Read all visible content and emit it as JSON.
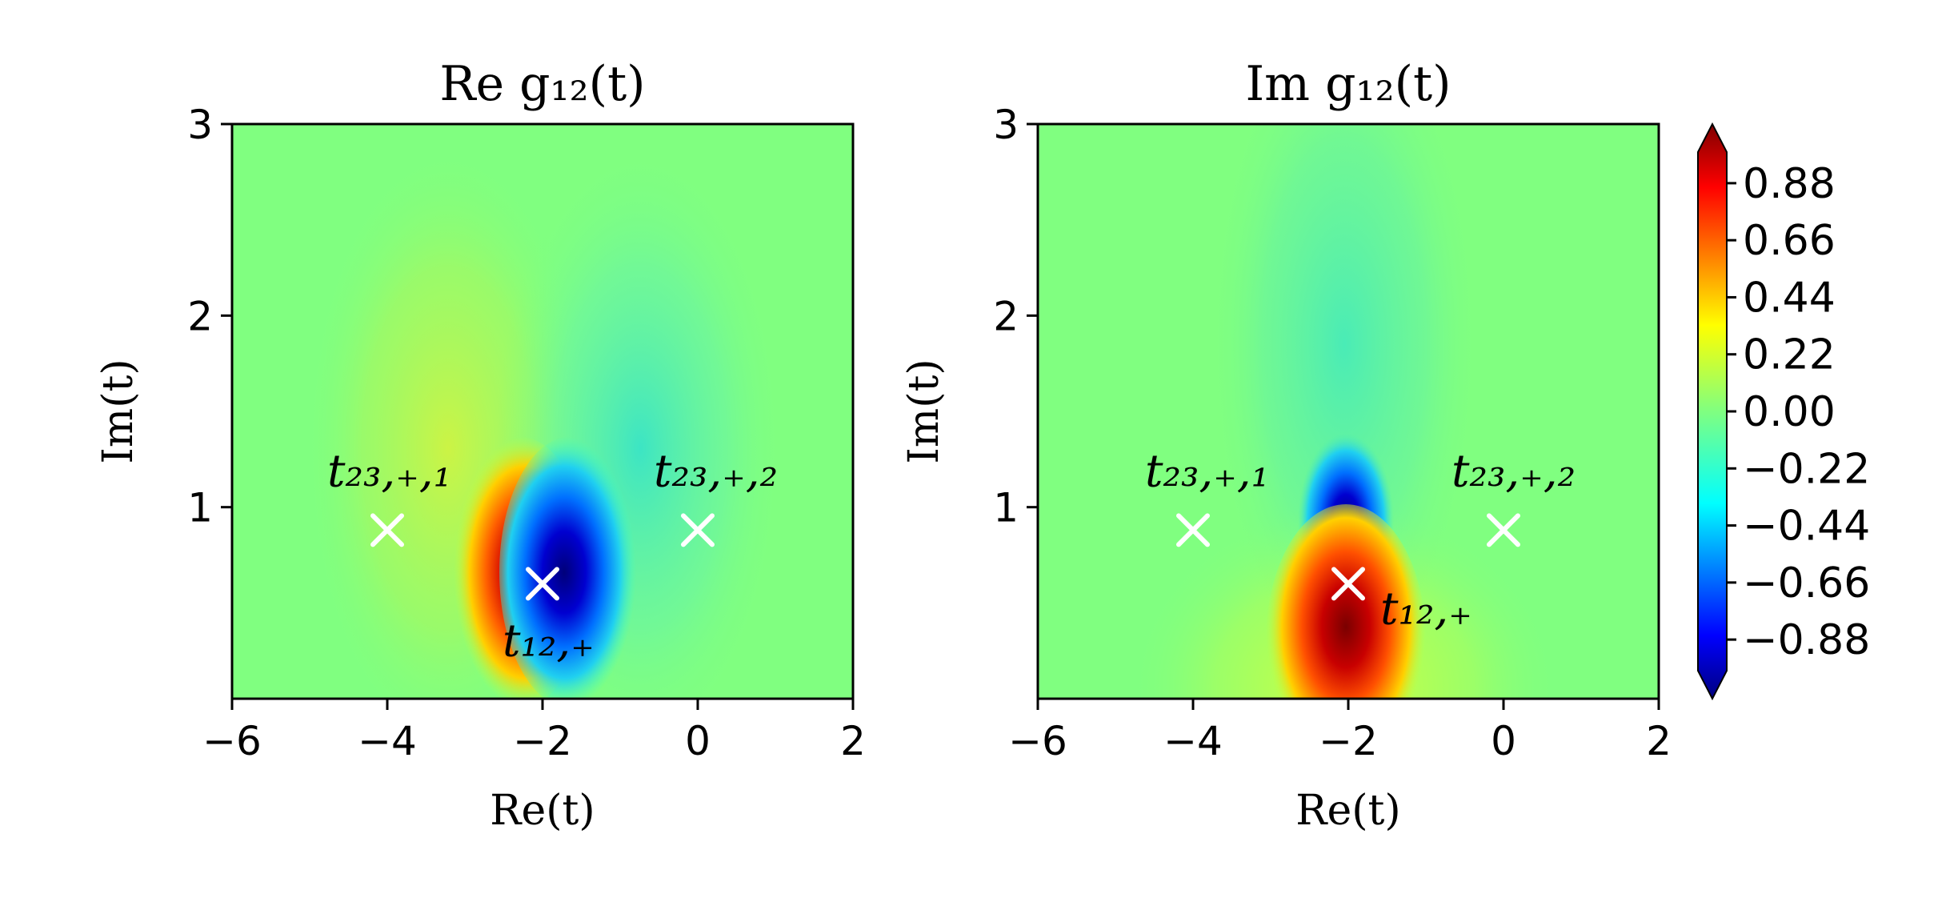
{
  "chart_data": [
    {
      "type": "heatmap",
      "title": "Re g₁₂(t)",
      "xlabel": "Re(t)",
      "ylabel": "Im(t)",
      "xlim": [
        -6,
        2
      ],
      "ylim": [
        0,
        3
      ],
      "x_ticks": [
        -6,
        -4,
        -2,
        0,
        2
      ],
      "y_ticks": [
        1,
        2,
        3
      ],
      "x_tick_labels": [
        "−6",
        "−4",
        "−2",
        "0",
        "2"
      ],
      "y_tick_labels": [
        "1",
        "2",
        "3"
      ],
      "markers": [
        {
          "x": -4,
          "y": 0.88,
          "label": "t₂₃,₊,₁"
        },
        {
          "x": 0,
          "y": 0.88,
          "label": "t₂₃,₊,₂"
        },
        {
          "x": -2,
          "y": 0.6,
          "label": "t₁₂,₊"
        }
      ]
    },
    {
      "type": "heatmap",
      "title": "Im g₁₂(t)",
      "xlabel": "Re(t)",
      "ylabel": "Im(t)",
      "xlim": [
        -6,
        2
      ],
      "ylim": [
        0,
        3
      ],
      "x_ticks": [
        -6,
        -4,
        -2,
        0,
        2
      ],
      "y_ticks": [
        1,
        2,
        3
      ],
      "x_tick_labels": [
        "−6",
        "−4",
        "−2",
        "0",
        "2"
      ],
      "y_tick_labels": [
        "1",
        "2",
        "3"
      ],
      "markers": [
        {
          "x": -4,
          "y": 0.88,
          "label": "t₂₃,₊,₁"
        },
        {
          "x": 0,
          "y": 0.88,
          "label": "t₂₃,₊,₂"
        },
        {
          "x": -2,
          "y": 0.6,
          "label": "t₁₂,₊"
        }
      ]
    }
  ],
  "colorbar": {
    "colormap": "jet",
    "range": [
      -1,
      1
    ],
    "ticks": [
      0.88,
      0.66,
      0.44,
      0.22,
      0.0,
      -0.22,
      -0.44,
      -0.66,
      -0.88
    ],
    "tick_labels": [
      "0.88",
      "0.66",
      "0.44",
      "0.22",
      "0.00",
      "−0.22",
      "−0.44",
      "−0.66",
      "−0.88"
    ],
    "extend": "both"
  }
}
